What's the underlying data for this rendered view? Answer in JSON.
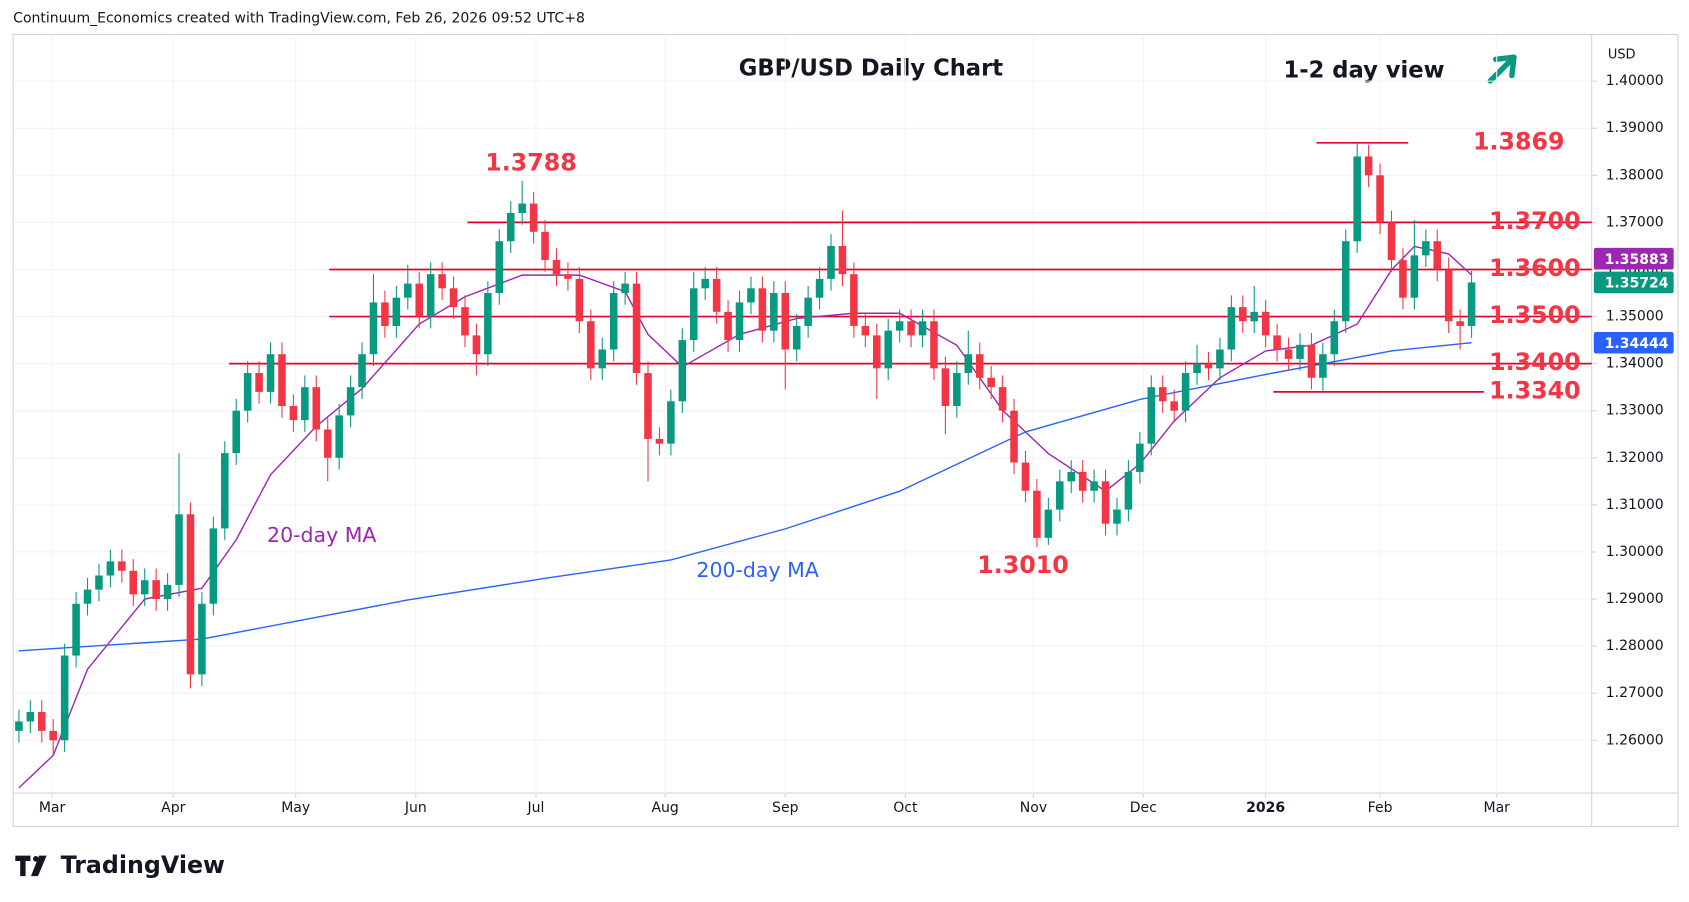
{
  "header": "Continuum_Economics created with TradingView.com, Feb 26, 2026 09:52 UTC+8",
  "brand": "TradingView",
  "chart_data": {
    "type": "candlestick",
    "title": "GBP/USD Daily Chart",
    "subtitle": "1-2 day view",
    "currency": "USD",
    "up_color": "#089981",
    "down_color": "#f23645",
    "level_color": "#e0002a",
    "grid": true,
    "xlim": [
      -0.5,
      137.5
    ],
    "xticks": [
      {
        "value": 2.9,
        "label": "Mar"
      },
      {
        "value": 13.5,
        "label": "Apr"
      },
      {
        "value": 24.2,
        "label": "May"
      },
      {
        "value": 34.7,
        "label": "Jun"
      },
      {
        "value": 45.2,
        "label": "Jul"
      },
      {
        "value": 56.5,
        "label": "Aug"
      },
      {
        "value": 67,
        "label": "Sep"
      },
      {
        "value": 77.5,
        "label": "Oct"
      },
      {
        "value": 88.7,
        "label": "Nov"
      },
      {
        "value": 98.3,
        "label": "Dec"
      },
      {
        "value": 109,
        "label": "2026"
      },
      {
        "value": 119,
        "label": "Feb"
      },
      {
        "value": 129.2,
        "label": "Mar"
      }
    ],
    "ylim": [
      1.2488,
      1.4099
    ],
    "yticks": [
      {
        "value": 1.26,
        "label": "1.26000"
      },
      {
        "value": 1.27,
        "label": "1.27000"
      },
      {
        "value": 1.28,
        "label": "1.28000"
      },
      {
        "value": 1.29,
        "label": "1.29000"
      },
      {
        "value": 1.3,
        "label": "1.30000"
      },
      {
        "value": 1.31,
        "label": "1.31000"
      },
      {
        "value": 1.32,
        "label": "1.32000"
      },
      {
        "value": 1.33,
        "label": "1.33000"
      },
      {
        "value": 1.34,
        "label": "1.34000"
      },
      {
        "value": 1.35,
        "label": "1.35000"
      },
      {
        "value": 1.36,
        "label": "1.36000"
      },
      {
        "value": 1.37,
        "label": "1.37000"
      },
      {
        "value": 1.38,
        "label": "1.38000"
      },
      {
        "value": 1.39,
        "label": "1.39000"
      },
      {
        "value": 1.4,
        "label": "1.40000"
      }
    ],
    "open": [
      1.262,
      1.264,
      1.266,
      1.262,
      1.26,
      1.278,
      1.289,
      1.292,
      1.295,
      1.298,
      1.296,
      1.291,
      1.294,
      1.29,
      1.293,
      1.308,
      1.274,
      1.289,
      1.305,
      1.321,
      1.33,
      1.338,
      1.334,
      1.342,
      1.331,
      1.328,
      1.335,
      1.326,
      1.32,
      1.329,
      1.335,
      1.342,
      1.353,
      1.348,
      1.354,
      1.357,
      1.35,
      1.359,
      1.356,
      1.352,
      1.346,
      1.342,
      1.355,
      1.366,
      1.372,
      1.374,
      1.368,
      1.362,
      1.359,
      1.358,
      1.349,
      1.339,
      1.343,
      1.355,
      1.357,
      1.338,
      1.324,
      1.323,
      1.332,
      1.345,
      1.356,
      1.358,
      1.351,
      1.345,
      1.353,
      1.356,
      1.347,
      1.355,
      1.343,
      1.348,
      1.354,
      1.358,
      1.365,
      1.359,
      1.348,
      1.346,
      1.339,
      1.347,
      1.349,
      1.346,
      1.349,
      1.339,
      1.331,
      1.338,
      1.342,
      1.337,
      1.335,
      1.33,
      1.319,
      1.313,
      1.303,
      1.309,
      1.315,
      1.317,
      1.313,
      1.315,
      1.306,
      1.309,
      1.317,
      1.323,
      1.335,
      1.332,
      1.33,
      1.338,
      1.34,
      1.339,
      1.343,
      1.352,
      1.349,
      1.351,
      1.346,
      1.343,
      1.341,
      1.344,
      1.337,
      1.342,
      1.349,
      1.366,
      1.384,
      1.38,
      1.37,
      1.362,
      1.354,
      1.363,
      1.366,
      1.36,
      1.349,
      1.348
    ],
    "high": [
      1.2665,
      1.2685,
      1.2685,
      1.2645,
      1.2805,
      1.2915,
      1.2945,
      1.2975,
      1.3005,
      1.3005,
      1.2985,
      1.2965,
      1.2965,
      1.2955,
      1.321,
      1.3105,
      1.2915,
      1.3075,
      1.3235,
      1.3325,
      1.3405,
      1.3405,
      1.3445,
      1.3445,
      1.3335,
      1.3375,
      1.3375,
      1.3285,
      1.3315,
      1.3375,
      1.3445,
      1.359,
      1.3555,
      1.3565,
      1.361,
      1.3595,
      1.3615,
      1.3615,
      1.3585,
      1.3545,
      1.3485,
      1.3575,
      1.3685,
      1.3745,
      1.3788,
      1.3765,
      1.3705,
      1.3645,
      1.3615,
      1.3605,
      1.3515,
      1.3455,
      1.3575,
      1.3595,
      1.3595,
      1.3405,
      1.3265,
      1.3345,
      1.3475,
      1.3595,
      1.3605,
      1.3605,
      1.3535,
      1.3555,
      1.3585,
      1.3585,
      1.3575,
      1.3575,
      1.3505,
      1.3565,
      1.3605,
      1.3675,
      1.3725,
      1.3615,
      1.3505,
      1.3485,
      1.3495,
      1.3515,
      1.3515,
      1.3515,
      1.3515,
      1.3415,
      1.3405,
      1.347,
      1.3445,
      1.3395,
      1.3375,
      1.3325,
      1.3215,
      1.3155,
      1.3115,
      1.3175,
      1.3195,
      1.3195,
      1.3175,
      1.3175,
      1.3115,
      1.3195,
      1.3255,
      1.3375,
      1.3375,
      1.3345,
      1.3405,
      1.344,
      1.3425,
      1.3455,
      1.3545,
      1.3545,
      1.3565,
      1.3535,
      1.3485,
      1.3455,
      1.3465,
      1.3465,
      1.3445,
      1.3515,
      1.3685,
      1.3869,
      1.3865,
      1.3825,
      1.3725,
      1.3645,
      1.3705,
      1.3685,
      1.3685,
      1.3625,
      1.3515,
      1.3597
    ],
    "low": [
      1.2595,
      1.2615,
      1.2595,
      1.257,
      1.2575,
      1.2755,
      1.2865,
      1.2895,
      1.2925,
      1.2935,
      1.2885,
      1.2885,
      1.2875,
      1.2875,
      1.2905,
      1.271,
      1.2715,
      1.2865,
      1.3025,
      1.3185,
      1.3275,
      1.3315,
      1.3315,
      1.3285,
      1.3255,
      1.3255,
      1.3235,
      1.315,
      1.3175,
      1.3265,
      1.3325,
      1.3395,
      1.3455,
      1.3455,
      1.3515,
      1.3475,
      1.3475,
      1.3535,
      1.3495,
      1.3435,
      1.3375,
      1.3395,
      1.3525,
      1.3635,
      1.3695,
      1.3655,
      1.3595,
      1.3565,
      1.3555,
      1.3465,
      1.3365,
      1.3365,
      1.3405,
      1.3525,
      1.3355,
      1.315,
      1.3205,
      1.3205,
      1.3295,
      1.3425,
      1.3535,
      1.3485,
      1.3425,
      1.3425,
      1.3505,
      1.3445,
      1.3445,
      1.3345,
      1.3405,
      1.3455,
      1.3515,
      1.3555,
      1.3565,
      1.3455,
      1.3435,
      1.3325,
      1.3365,
      1.3445,
      1.3435,
      1.3435,
      1.3365,
      1.325,
      1.3285,
      1.3355,
      1.3345,
      1.3325,
      1.3275,
      1.3165,
      1.3105,
      1.301,
      1.3015,
      1.3065,
      1.3125,
      1.3105,
      1.3105,
      1.3035,
      1.3035,
      1.3065,
      1.3145,
      1.3205,
      1.3295,
      1.3275,
      1.3275,
      1.3355,
      1.3365,
      1.3365,
      1.3405,
      1.3465,
      1.3465,
      1.3435,
      1.3405,
      1.3385,
      1.3385,
      1.3345,
      1.334,
      1.3395,
      1.3465,
      1.3635,
      1.3775,
      1.3675,
      1.3595,
      1.3515,
      1.3515,
      1.3605,
      1.3575,
      1.3465,
      1.343,
      1.3455
    ],
    "close": [
      1.264,
      1.266,
      1.262,
      1.26,
      1.278,
      1.289,
      1.292,
      1.295,
      1.298,
      1.296,
      1.291,
      1.294,
      1.29,
      1.293,
      1.308,
      1.274,
      1.289,
      1.305,
      1.321,
      1.33,
      1.338,
      1.334,
      1.342,
      1.331,
      1.328,
      1.335,
      1.326,
      1.32,
      1.329,
      1.335,
      1.342,
      1.353,
      1.348,
      1.354,
      1.357,
      1.35,
      1.359,
      1.356,
      1.352,
      1.346,
      1.342,
      1.355,
      1.366,
      1.372,
      1.374,
      1.368,
      1.362,
      1.359,
      1.358,
      1.349,
      1.339,
      1.343,
      1.355,
      1.357,
      1.338,
      1.324,
      1.323,
      1.332,
      1.345,
      1.356,
      1.358,
      1.351,
      1.345,
      1.353,
      1.356,
      1.347,
      1.355,
      1.343,
      1.348,
      1.354,
      1.358,
      1.365,
      1.359,
      1.348,
      1.346,
      1.339,
      1.347,
      1.349,
      1.346,
      1.349,
      1.339,
      1.331,
      1.338,
      1.342,
      1.337,
      1.335,
      1.33,
      1.319,
      1.313,
      1.303,
      1.309,
      1.315,
      1.317,
      1.313,
      1.315,
      1.306,
      1.309,
      1.317,
      1.323,
      1.335,
      1.332,
      1.33,
      1.338,
      1.34,
      1.339,
      1.343,
      1.352,
      1.349,
      1.351,
      1.346,
      1.343,
      1.341,
      1.344,
      1.337,
      1.342,
      1.349,
      1.366,
      1.384,
      1.38,
      1.37,
      1.362,
      1.354,
      1.363,
      1.366,
      1.36,
      1.349,
      1.348,
      1.35724
    ],
    "series": [
      {
        "name": "20-day MA",
        "color": "#9c27b0",
        "x": [
          0,
          3,
          6,
          11,
          16,
          19,
          22,
          26,
          30,
          35,
          39,
          44,
          49,
          53,
          55,
          58,
          63,
          68,
          73,
          77,
          82,
          86,
          90,
          95,
          98,
          101,
          105,
          109,
          113,
          117,
          120,
          122,
          125,
          127
        ],
        "values": [
          1.2499,
          1.2568,
          1.2751,
          1.29,
          1.2923,
          1.3026,
          1.3164,
          1.3267,
          1.3347,
          1.3484,
          1.3542,
          1.3588,
          1.3588,
          1.3553,
          1.3462,
          1.3393,
          1.3462,
          1.3496,
          1.3507,
          1.3507,
          1.3439,
          1.3301,
          1.3209,
          1.3129,
          1.3187,
          1.3278,
          1.337,
          1.3427,
          1.3439,
          1.3484,
          1.3599,
          1.3649,
          1.3633,
          1.35883
        ]
      },
      {
        "name": "200-day MA",
        "color": "#2962ff",
        "x": [
          0,
          16,
          34,
          46,
          57,
          67,
          77,
          88,
          98,
          109,
          120,
          127
        ],
        "values": [
          1.279,
          1.2815,
          1.2898,
          1.2944,
          1.2983,
          1.3049,
          1.3129,
          1.3255,
          1.3324,
          1.3377,
          1.3427,
          1.34444
        ]
      }
    ],
    "levels": [
      1.3869,
      {
        "value": 1.37,
        "label": "1.3700"
      },
      {
        "value": 1.36,
        "label": "1.3600"
      },
      {
        "value": 1.35,
        "label": "1.3500"
      },
      {
        "value": 1.34,
        "label": "1.3400"
      },
      {
        "value": 1.334,
        "label": "1.3340"
      }
    ],
    "annotations": [
      "1.3788",
      "1.3010"
    ]
  }
}
